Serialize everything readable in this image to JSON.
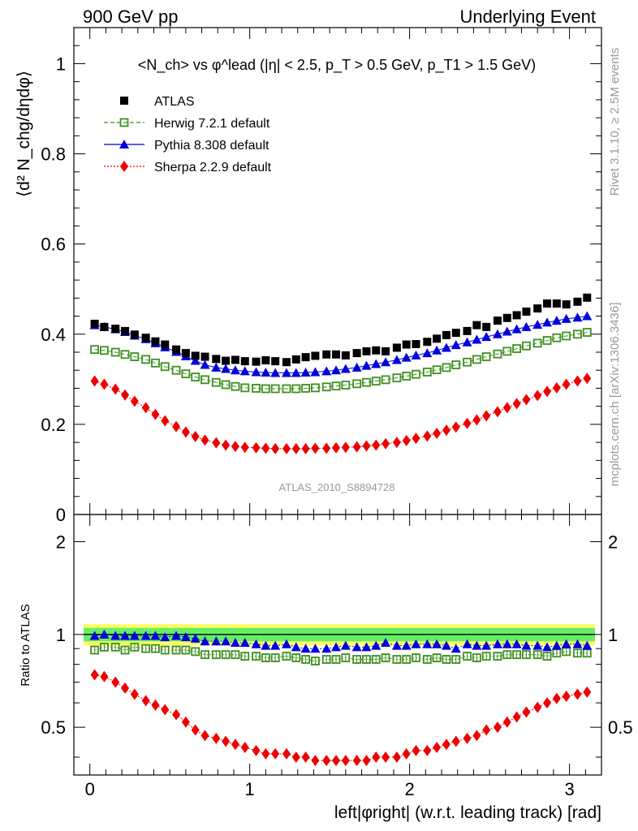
{
  "header": {
    "left": "900 GeV pp",
    "right": "Underlying Event"
  },
  "side_labels": {
    "rivet": "Rivet 3.1.10, ≥ 2.5M events",
    "mcplots": "mcplots.cern.ch [arXiv:1306.3436]"
  },
  "chart_data": [
    {
      "type": "scatter",
      "title": "<N_ch> vs φ^lead (|η| < 2.5, p_T > 0.5 GeV, p_T1 > 1.5 GeV)",
      "ylabel": "⟨d² N_chg/dηdφ⟩",
      "analysis_label": "ATLAS_2010_S8894728",
      "xlim": [
        -0.1,
        3.2
      ],
      "ylim": [
        0,
        1.08
      ],
      "yticks": [
        "0",
        "0.2",
        "0.4",
        "0.6",
        "0.8",
        "1"
      ],
      "legend_position": "top-left",
      "x": [
        0.03,
        0.09,
        0.16,
        0.22,
        0.28,
        0.35,
        0.41,
        0.47,
        0.54,
        0.6,
        0.66,
        0.72,
        0.79,
        0.85,
        0.91,
        0.97,
        1.04,
        1.1,
        1.16,
        1.23,
        1.29,
        1.35,
        1.41,
        1.48,
        1.54,
        1.6,
        1.67,
        1.73,
        1.79,
        1.85,
        1.92,
        1.98,
        2.04,
        2.11,
        2.17,
        2.23,
        2.29,
        2.36,
        2.42,
        2.48,
        2.55,
        2.61,
        2.67,
        2.73,
        2.8,
        2.86,
        2.92,
        2.98,
        3.05,
        3.11
      ],
      "series": [
        {
          "name": "ATLAS",
          "color": "#000000",
          "marker": "filled-square",
          "values": [
            0.423,
            0.416,
            0.412,
            0.407,
            0.399,
            0.392,
            0.384,
            0.377,
            0.366,
            0.358,
            0.352,
            0.35,
            0.345,
            0.341,
            0.343,
            0.34,
            0.339,
            0.342,
            0.34,
            0.338,
            0.344,
            0.349,
            0.352,
            0.355,
            0.355,
            0.353,
            0.358,
            0.362,
            0.364,
            0.362,
            0.37,
            0.377,
            0.378,
            0.383,
            0.39,
            0.398,
            0.403,
            0.407,
            0.42,
            0.416,
            0.43,
            0.436,
            0.442,
            0.45,
            0.457,
            0.468,
            0.468,
            0.466,
            0.472,
            0.481
          ]
        },
        {
          "name": "Herwig 7.2.1 default",
          "color": "#3e8f1e",
          "marker": "open-square",
          "line": "dashed",
          "values": [
            0.366,
            0.364,
            0.36,
            0.355,
            0.35,
            0.344,
            0.336,
            0.328,
            0.32,
            0.312,
            0.305,
            0.299,
            0.293,
            0.288,
            0.284,
            0.281,
            0.28,
            0.279,
            0.279,
            0.279,
            0.279,
            0.28,
            0.281,
            0.283,
            0.285,
            0.287,
            0.29,
            0.293,
            0.296,
            0.299,
            0.303,
            0.307,
            0.311,
            0.316,
            0.321,
            0.326,
            0.332,
            0.338,
            0.344,
            0.35,
            0.356,
            0.362,
            0.368,
            0.374,
            0.38,
            0.386,
            0.392,
            0.396,
            0.4,
            0.404
          ]
        },
        {
          "name": "Pythia 8.308 default",
          "color": "#0000dd",
          "marker": "filled-triangle",
          "line": "solid",
          "values": [
            0.42,
            0.416,
            0.411,
            0.405,
            0.397,
            0.389,
            0.38,
            0.371,
            0.361,
            0.351,
            0.341,
            0.332,
            0.326,
            0.323,
            0.32,
            0.318,
            0.316,
            0.315,
            0.314,
            0.314,
            0.314,
            0.315,
            0.316,
            0.318,
            0.32,
            0.323,
            0.326,
            0.33,
            0.334,
            0.338,
            0.343,
            0.348,
            0.353,
            0.358,
            0.364,
            0.37,
            0.376,
            0.382,
            0.388,
            0.394,
            0.4,
            0.406,
            0.411,
            0.416,
            0.421,
            0.426,
            0.43,
            0.434,
            0.437,
            0.44
          ]
        },
        {
          "name": "Sherpa 2.2.9 default",
          "color": "#ee0000",
          "marker": "filled-diamond",
          "line": "dotted",
          "values": [
            0.296,
            0.289,
            0.278,
            0.265,
            0.251,
            0.237,
            0.222,
            0.208,
            0.195,
            0.183,
            0.173,
            0.165,
            0.159,
            0.154,
            0.151,
            0.149,
            0.148,
            0.147,
            0.146,
            0.146,
            0.146,
            0.146,
            0.147,
            0.147,
            0.148,
            0.149,
            0.15,
            0.152,
            0.154,
            0.157,
            0.16,
            0.164,
            0.169,
            0.174,
            0.18,
            0.187,
            0.194,
            0.202,
            0.21,
            0.219,
            0.228,
            0.237,
            0.246,
            0.255,
            0.264,
            0.273,
            0.281,
            0.289,
            0.296,
            0.302
          ]
        }
      ]
    },
    {
      "type": "scatter",
      "ylabel": "Ratio to ATLAS",
      "xlabel": "left|φright| (w.r.t. leading track) [rad]",
      "xlim": [
        -0.1,
        3.2
      ],
      "xticks": [
        "0",
        "1",
        "2",
        "3"
      ],
      "ylim": [
        0.35,
        2.45
      ],
      "yticks": [
        "0.5",
        "1",
        "2"
      ],
      "log_scale_y": true,
      "reference_band": {
        "inner_color": "#66ee66",
        "outer_color": "#ffff66",
        "inner": [
          0.95,
          1.05
        ],
        "outer": [
          0.92,
          1.08
        ]
      },
      "x": [
        0.03,
        0.09,
        0.16,
        0.22,
        0.28,
        0.35,
        0.41,
        0.47,
        0.54,
        0.6,
        0.66,
        0.72,
        0.79,
        0.85,
        0.91,
        0.97,
        1.04,
        1.1,
        1.16,
        1.23,
        1.29,
        1.35,
        1.41,
        1.48,
        1.54,
        1.6,
        1.67,
        1.73,
        1.79,
        1.85,
        1.92,
        1.98,
        2.04,
        2.11,
        2.17,
        2.23,
        2.29,
        2.36,
        2.42,
        2.48,
        2.55,
        2.61,
        2.67,
        2.73,
        2.8,
        2.86,
        2.92,
        2.98,
        3.05,
        3.11
      ],
      "series": [
        {
          "name": "Herwig 7.2.1 default",
          "color": "#3e8f1e",
          "marker": "open-square",
          "values": [
            0.89,
            0.91,
            0.91,
            0.89,
            0.91,
            0.9,
            0.9,
            0.89,
            0.89,
            0.89,
            0.88,
            0.86,
            0.86,
            0.86,
            0.86,
            0.85,
            0.85,
            0.84,
            0.84,
            0.85,
            0.84,
            0.83,
            0.82,
            0.83,
            0.83,
            0.84,
            0.83,
            0.83,
            0.83,
            0.84,
            0.83,
            0.83,
            0.84,
            0.83,
            0.84,
            0.83,
            0.83,
            0.85,
            0.84,
            0.85,
            0.85,
            0.86,
            0.86,
            0.86,
            0.86,
            0.85,
            0.87,
            0.88,
            0.87,
            0.87
          ]
        },
        {
          "name": "Pythia 8.308 default",
          "color": "#0000dd",
          "marker": "filled-triangle",
          "values": [
            0.99,
            1.0,
            0.99,
            0.99,
            0.99,
            0.99,
            0.99,
            0.98,
            0.99,
            0.98,
            0.97,
            0.95,
            0.95,
            0.95,
            0.94,
            0.94,
            0.93,
            0.92,
            0.92,
            0.93,
            0.91,
            0.9,
            0.9,
            0.9,
            0.91,
            0.92,
            0.91,
            0.91,
            0.92,
            0.94,
            0.92,
            0.92,
            0.93,
            0.93,
            0.93,
            0.92,
            0.9,
            0.93,
            0.92,
            0.92,
            0.93,
            0.93,
            0.93,
            0.92,
            0.92,
            0.91,
            0.92,
            0.93,
            0.93,
            0.92
          ]
        },
        {
          "name": "Sherpa 2.2.9 default",
          "color": "#ee0000",
          "marker": "filled-diamond",
          "values": [
            0.74,
            0.73,
            0.7,
            0.67,
            0.64,
            0.61,
            0.59,
            0.57,
            0.55,
            0.52,
            0.49,
            0.47,
            0.46,
            0.45,
            0.44,
            0.43,
            0.42,
            0.41,
            0.41,
            0.41,
            0.4,
            0.4,
            0.39,
            0.39,
            0.39,
            0.39,
            0.39,
            0.39,
            0.4,
            0.4,
            0.4,
            0.41,
            0.42,
            0.42,
            0.43,
            0.44,
            0.45,
            0.46,
            0.47,
            0.49,
            0.5,
            0.52,
            0.54,
            0.56,
            0.58,
            0.6,
            0.62,
            0.63,
            0.64,
            0.65
          ]
        }
      ]
    }
  ]
}
